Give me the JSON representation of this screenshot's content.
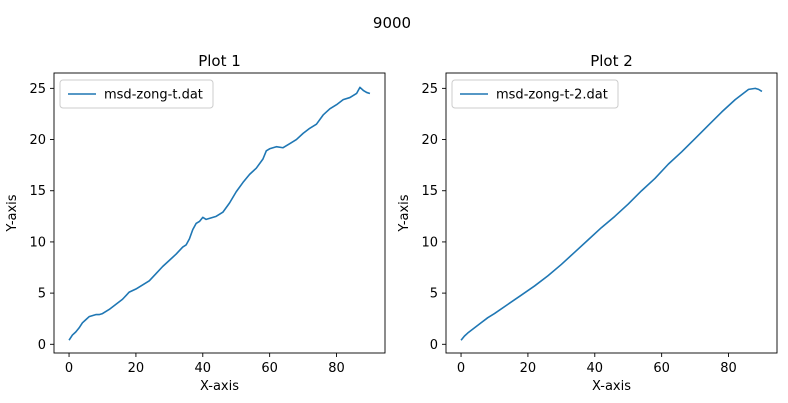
{
  "suptitle": "9000",
  "chart_data": [
    {
      "type": "line",
      "title": "Plot 1",
      "xlabel": "X-axis",
      "ylabel": "Y-axis",
      "xlim": [
        -4.5,
        94.5
      ],
      "ylim": [
        -0.85,
        26.5
      ],
      "xticks": [
        0,
        20,
        40,
        60,
        80
      ],
      "yticks": [
        0,
        5,
        10,
        15,
        20,
        25
      ],
      "grid": false,
      "legend": "upper-left",
      "series": [
        {
          "name": "msd-zong-t.dat",
          "color": "#1f77b4",
          "x": [
            0,
            1,
            2,
            3,
            4,
            5,
            6,
            7,
            8,
            9,
            10,
            12,
            14,
            16,
            18,
            20,
            22,
            24,
            26,
            28,
            30,
            32,
            34,
            35,
            36,
            37,
            38,
            39,
            40,
            41,
            42,
            44,
            46,
            48,
            50,
            52,
            54,
            56,
            58,
            59,
            60,
            62,
            64,
            66,
            68,
            70,
            72,
            74,
            76,
            78,
            80,
            82,
            84,
            86,
            87,
            88,
            89,
            90
          ],
          "y": [
            0.4,
            0.9,
            1.2,
            1.6,
            2.1,
            2.4,
            2.7,
            2.8,
            2.9,
            2.9,
            3.0,
            3.4,
            3.9,
            4.4,
            5.1,
            5.4,
            5.8,
            6.2,
            6.9,
            7.6,
            8.2,
            8.8,
            9.5,
            9.7,
            10.3,
            11.2,
            11.8,
            12.0,
            12.4,
            12.2,
            12.3,
            12.5,
            12.9,
            13.8,
            14.9,
            15.8,
            16.6,
            17.2,
            18.1,
            18.9,
            19.1,
            19.3,
            19.2,
            19.6,
            20.0,
            20.6,
            21.1,
            21.5,
            22.4,
            23.0,
            23.4,
            23.9,
            24.1,
            24.5,
            25.1,
            24.8,
            24.6,
            24.5
          ]
        }
      ]
    },
    {
      "type": "line",
      "title": "Plot 2",
      "xlabel": "X-axis",
      "ylabel": "Y-axis",
      "xlim": [
        -4.5,
        94.5
      ],
      "ylim": [
        -0.85,
        26.5
      ],
      "xticks": [
        0,
        20,
        40,
        60,
        80
      ],
      "yticks": [
        0,
        5,
        10,
        15,
        20,
        25
      ],
      "grid": false,
      "legend": "upper-left",
      "series": [
        {
          "name": "msd-zong-t-2.dat",
          "color": "#1f77b4",
          "x": [
            0,
            1,
            2,
            4,
            6,
            8,
            10,
            14,
            18,
            22,
            26,
            30,
            34,
            38,
            42,
            46,
            50,
            54,
            58,
            62,
            66,
            70,
            74,
            78,
            82,
            86,
            88,
            89,
            90
          ],
          "y": [
            0.4,
            0.8,
            1.1,
            1.6,
            2.1,
            2.6,
            3.0,
            3.9,
            4.8,
            5.7,
            6.7,
            7.8,
            9.0,
            10.2,
            11.4,
            12.5,
            13.7,
            15.0,
            16.2,
            17.6,
            18.8,
            20.1,
            21.4,
            22.7,
            23.9,
            24.9,
            25.0,
            24.9,
            24.7
          ]
        }
      ]
    }
  ]
}
